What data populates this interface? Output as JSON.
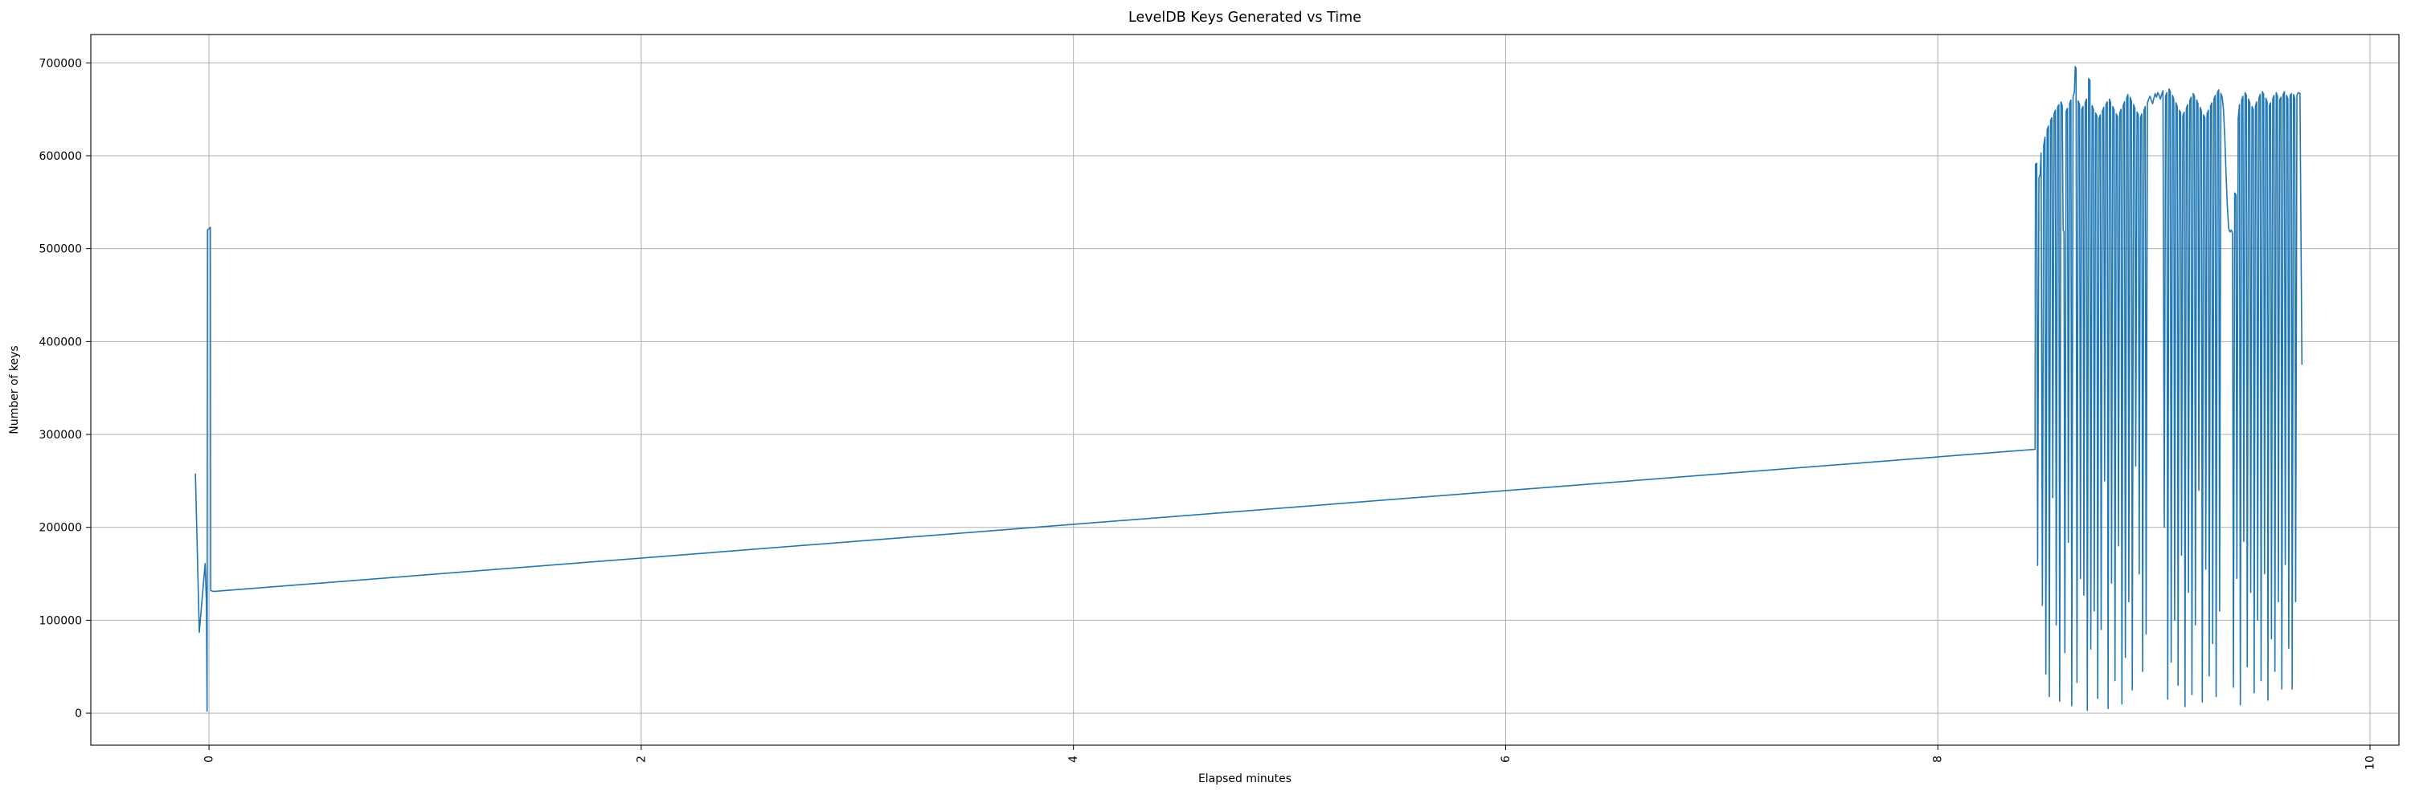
{
  "title": "LevelDB Keys Generated vs Time",
  "chart_data": {
    "type": "line",
    "title": "LevelDB Keys Generated vs Time",
    "xlabel": "Elapsed minutes",
    "ylabel": "Number of keys",
    "xlim": [
      -0.547,
      10.134
    ],
    "ylim": [
      -34500,
      730500
    ],
    "xticks": [
      0,
      2,
      4,
      6,
      8,
      10
    ],
    "yticks": [
      0,
      100000,
      200000,
      300000,
      400000,
      500000,
      600000,
      700000
    ],
    "x_tick_rotation": 90,
    "grid": true,
    "legend_position": "none",
    "line_color": "#1f77b4",
    "grid_color": "#b0b0b0",
    "spine_color": "#000000",
    "background_color": "#ffffff",
    "series": [
      {
        "name": "keys",
        "points": [
          [
            -0.063,
            258000
          ],
          [
            -0.045,
            87000
          ],
          [
            -0.018,
            161000
          ],
          [
            -0.012,
            118000
          ],
          [
            -0.009,
            2000
          ],
          [
            -0.007,
            520000
          ],
          [
            0.006,
            523000
          ],
          [
            0.008,
            132000
          ],
          [
            0.02,
            131000
          ],
          [
            8.45,
            284000
          ],
          [
            8.452,
            591000
          ],
          [
            8.458,
            592000
          ],
          [
            8.462,
            159000
          ],
          [
            8.468,
            576000
          ],
          [
            8.474,
            580000
          ],
          [
            8.478,
            603000
          ],
          [
            8.484,
            116000
          ],
          [
            8.49,
            611000
          ],
          [
            8.496,
            620000
          ],
          [
            8.5,
            42000
          ],
          [
            8.506,
            628000
          ],
          [
            8.512,
            632000
          ],
          [
            8.516,
            18000
          ],
          [
            8.522,
            638000
          ],
          [
            8.528,
            641000
          ],
          [
            8.532,
            232000
          ],
          [
            8.538,
            645000
          ],
          [
            8.544,
            649000
          ],
          [
            8.548,
            95000
          ],
          [
            8.554,
            652000
          ],
          [
            8.56,
            655000
          ],
          [
            8.564,
            13000
          ],
          [
            8.57,
            658000
          ],
          [
            8.576,
            654000
          ],
          [
            8.58,
            520000
          ],
          [
            8.584,
            518000
          ],
          [
            8.588,
            65000
          ],
          [
            8.594,
            648000
          ],
          [
            8.6,
            651000
          ],
          [
            8.604,
            184000
          ],
          [
            8.61,
            656000
          ],
          [
            8.616,
            660000
          ],
          [
            8.62,
            8000
          ],
          [
            8.626,
            664000
          ],
          [
            8.632,
            668000
          ],
          [
            8.636,
            696000
          ],
          [
            8.64,
            694000
          ],
          [
            8.644,
            33000
          ],
          [
            8.65,
            659000
          ],
          [
            8.656,
            655000
          ],
          [
            8.66,
            145000
          ],
          [
            8.666,
            650000
          ],
          [
            8.672,
            653000
          ],
          [
            8.676,
            127000
          ],
          [
            8.682,
            657000
          ],
          [
            8.688,
            661000
          ],
          [
            8.692,
            3000
          ],
          [
            8.698,
            683000
          ],
          [
            8.704,
            681000
          ],
          [
            8.708,
            69000
          ],
          [
            8.714,
            654000
          ],
          [
            8.72,
            650000
          ],
          [
            8.724,
            110000
          ],
          [
            8.73,
            646000
          ],
          [
            8.736,
            643000
          ],
          [
            8.74,
            16000
          ],
          [
            8.746,
            640000
          ],
          [
            8.752,
            644000
          ],
          [
            8.756,
            90000
          ],
          [
            8.762,
            648000
          ],
          [
            8.768,
            652000
          ],
          [
            8.772,
            250000
          ],
          [
            8.778,
            655000
          ],
          [
            8.784,
            658000
          ],
          [
            8.788,
            5000
          ],
          [
            8.794,
            661000
          ],
          [
            8.8,
            657000
          ],
          [
            8.804,
            140000
          ],
          [
            8.81,
            653000
          ],
          [
            8.816,
            649000
          ],
          [
            8.82,
            35000
          ],
          [
            8.826,
            645000
          ],
          [
            8.832,
            642000
          ],
          [
            8.836,
            180000
          ],
          [
            8.842,
            646000
          ],
          [
            8.848,
            650000
          ],
          [
            8.852,
            10000
          ],
          [
            8.858,
            654000
          ],
          [
            8.864,
            658000
          ],
          [
            8.868,
            60000
          ],
          [
            8.874,
            662000
          ],
          [
            8.88,
            666000
          ],
          [
            8.884,
            120000
          ],
          [
            8.89,
            663000
          ],
          [
            8.896,
            659000
          ],
          [
            8.9,
            25000
          ],
          [
            8.906,
            655000
          ],
          [
            8.912,
            651000
          ],
          [
            8.916,
            266000
          ],
          [
            8.922,
            647000
          ],
          [
            8.928,
            644000
          ],
          [
            8.932,
            150000
          ],
          [
            8.938,
            641000
          ],
          [
            8.944,
            645000
          ],
          [
            8.948,
            45000
          ],
          [
            8.954,
            649000
          ],
          [
            8.96,
            653000
          ],
          [
            8.964,
            85000
          ],
          [
            8.97,
            657000
          ],
          [
            8.976,
            661000
          ],
          [
            8.982,
            664000
          ],
          [
            8.988,
            660000
          ],
          [
            8.994,
            656000
          ],
          [
            9.0,
            662000
          ],
          [
            9.006,
            667000
          ],
          [
            9.012,
            663000
          ],
          [
            9.018,
            668000
          ],
          [
            9.024,
            665000
          ],
          [
            9.03,
            661000
          ],
          [
            9.036,
            666000
          ],
          [
            9.042,
            670000
          ],
          [
            9.048,
            200000
          ],
          [
            9.054,
            664000
          ],
          [
            9.06,
            668000
          ],
          [
            9.064,
            15000
          ],
          [
            9.07,
            672000
          ],
          [
            9.076,
            669000
          ],
          [
            9.08,
            55000
          ],
          [
            9.086,
            665000
          ],
          [
            9.092,
            661000
          ],
          [
            9.096,
            100000
          ],
          [
            9.102,
            657000
          ],
          [
            9.108,
            653000
          ],
          [
            9.112,
            30000
          ],
          [
            9.118,
            649000
          ],
          [
            9.124,
            646000
          ],
          [
            9.128,
            170000
          ],
          [
            9.134,
            643000
          ],
          [
            9.14,
            647000
          ],
          [
            9.144,
            7000
          ],
          [
            9.15,
            651000
          ],
          [
            9.156,
            655000
          ],
          [
            9.16,
            130000
          ],
          [
            9.166,
            659000
          ],
          [
            9.172,
            663000
          ],
          [
            9.176,
            20000
          ],
          [
            9.182,
            667000
          ],
          [
            9.188,
            664000
          ],
          [
            9.192,
            95000
          ],
          [
            9.198,
            660000
          ],
          [
            9.204,
            656000
          ],
          [
            9.208,
            240000
          ],
          [
            9.214,
            652000
          ],
          [
            9.22,
            648000
          ],
          [
            9.224,
            12000
          ],
          [
            9.23,
            644000
          ],
          [
            9.236,
            641000
          ],
          [
            9.24,
            155000
          ],
          [
            9.246,
            645000
          ],
          [
            9.252,
            649000
          ],
          [
            9.256,
            40000
          ],
          [
            9.262,
            653000
          ],
          [
            9.268,
            657000
          ],
          [
            9.272,
            75000
          ],
          [
            9.278,
            661000
          ],
          [
            9.284,
            665000
          ],
          [
            9.288,
            18000
          ],
          [
            9.294,
            668000
          ],
          [
            9.3,
            671000
          ],
          [
            9.304,
            110000
          ],
          [
            9.31,
            667000
          ],
          [
            9.316,
            663000
          ],
          [
            9.322,
            650000
          ],
          [
            9.328,
            620000
          ],
          [
            9.334,
            580000
          ],
          [
            9.34,
            545000
          ],
          [
            9.346,
            522000
          ],
          [
            9.352,
            518000
          ],
          [
            9.358,
            520000
          ],
          [
            9.364,
            517000
          ],
          [
            9.368,
            28000
          ],
          [
            9.374,
            560000
          ],
          [
            9.38,
            558000
          ],
          [
            9.384,
            145000
          ],
          [
            9.39,
            640000
          ],
          [
            9.396,
            655000
          ],
          [
            9.4,
            9000
          ],
          [
            9.406,
            660000
          ],
          [
            9.412,
            664000
          ],
          [
            9.416,
            185000
          ],
          [
            9.422,
            668000
          ],
          [
            9.428,
            665000
          ],
          [
            9.432,
            50000
          ],
          [
            9.438,
            661000
          ],
          [
            9.444,
            657000
          ],
          [
            9.448,
            130000
          ],
          [
            9.454,
            653000
          ],
          [
            9.46,
            650000
          ],
          [
            9.464,
            22000
          ],
          [
            9.47,
            654000
          ],
          [
            9.476,
            658000
          ],
          [
            9.48,
            100000
          ],
          [
            9.486,
            662000
          ],
          [
            9.492,
            666000
          ],
          [
            9.496,
            35000
          ],
          [
            9.502,
            669000
          ],
          [
            9.508,
            666000
          ],
          [
            9.512,
            150000
          ],
          [
            9.518,
            662000
          ],
          [
            9.524,
            658000
          ],
          [
            9.528,
            14000
          ],
          [
            9.534,
            654000
          ],
          [
            9.54,
            657000
          ],
          [
            9.544,
            80000
          ],
          [
            9.55,
            661000
          ],
          [
            9.556,
            665000
          ],
          [
            9.56,
            45000
          ],
          [
            9.566,
            668000
          ],
          [
            9.572,
            664000
          ],
          [
            9.576,
            120000
          ],
          [
            9.582,
            660000
          ],
          [
            9.588,
            663000
          ],
          [
            9.592,
            26000
          ],
          [
            9.598,
            666000
          ],
          [
            9.604,
            669000
          ],
          [
            9.608,
            160000
          ],
          [
            9.614,
            665000
          ],
          [
            9.62,
            661000
          ],
          [
            9.624,
            70000
          ],
          [
            9.63,
            664000
          ],
          [
            9.636,
            667000
          ],
          [
            9.64,
            26000
          ],
          [
            9.646,
            666000
          ],
          [
            9.652,
            662000
          ],
          [
            9.656,
            120000
          ],
          [
            9.662,
            665000
          ],
          [
            9.668,
            668000
          ],
          [
            9.676,
            667000
          ],
          [
            9.685,
            375000
          ]
        ]
      }
    ]
  }
}
